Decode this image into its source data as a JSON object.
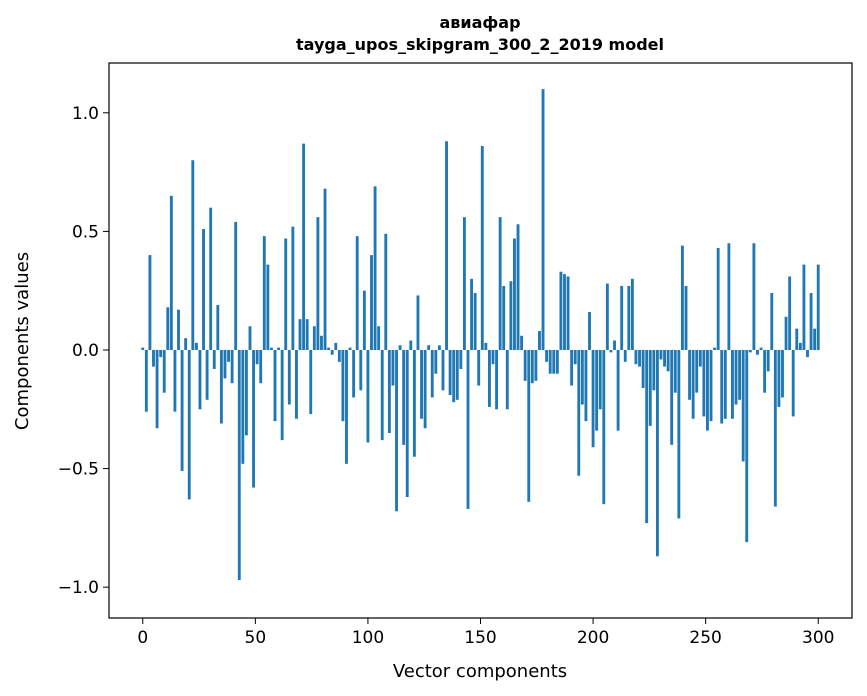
{
  "chart_data": {
    "type": "bar",
    "title_line1": "авиафар",
    "title_line2": "tayga_upos_skipgram_300_2_2019 model",
    "xlabel": "Vector components",
    "ylabel": "Components values",
    "xlim": [
      -15,
      315
    ],
    "ylim": [
      -1.13,
      1.21
    ],
    "x_ticks": [
      {
        "value": 0,
        "label": "0"
      },
      {
        "value": 50,
        "label": "50"
      },
      {
        "value": 100,
        "label": "100"
      },
      {
        "value": 150,
        "label": "150"
      },
      {
        "value": 200,
        "label": "200"
      },
      {
        "value": 250,
        "label": "250"
      },
      {
        "value": 300,
        "label": "300"
      }
    ],
    "y_ticks": [
      {
        "value": 1.0,
        "label": "1.0"
      },
      {
        "value": 0.5,
        "label": "0.5"
      },
      {
        "value": 0.0,
        "label": "0.0"
      },
      {
        "value": -0.5,
        "label": "−0.5"
      },
      {
        "value": -1.0,
        "label": "−1.0"
      }
    ],
    "bar_color": "#1f77b4",
    "grid": false,
    "values": [
      0.01,
      -0.26,
      0.4,
      -0.07,
      -0.33,
      -0.03,
      -0.18,
      0.18,
      0.65,
      -0.26,
      0.17,
      -0.51,
      0.05,
      -0.63,
      0.8,
      0.03,
      -0.25,
      0.51,
      -0.21,
      0.6,
      -0.08,
      0.19,
      -0.31,
      -0.12,
      -0.05,
      -0.14,
      0.54,
      -0.97,
      -0.48,
      -0.36,
      0.1,
      -0.58,
      -0.06,
      -0.14,
      0.48,
      0.36,
      0.01,
      -0.3,
      0.01,
      -0.38,
      0.47,
      -0.23,
      0.52,
      -0.29,
      0.13,
      0.87,
      0.13,
      -0.27,
      0.1,
      0.56,
      0.06,
      0.68,
      0.01,
      -0.02,
      0.03,
      -0.05,
      -0.3,
      -0.48,
      0.01,
      -0.2,
      0.48,
      -0.17,
      0.25,
      -0.39,
      0.4,
      0.69,
      0.1,
      -0.38,
      0.49,
      -0.35,
      -0.15,
      -0.68,
      0.02,
      -0.4,
      -0.62,
      0.04,
      -0.45,
      0.23,
      -0.29,
      -0.33,
      0.02,
      -0.2,
      -0.1,
      0.02,
      -0.17,
      0.88,
      -0.19,
      -0.22,
      -0.21,
      -0.08,
      0.56,
      -0.67,
      0.3,
      0.24,
      -0.15,
      0.86,
      0.03,
      -0.24,
      -0.06,
      -0.25,
      0.56,
      0.27,
      -0.25,
      0.29,
      0.47,
      0.53,
      0.06,
      -0.13,
      -0.64,
      -0.14,
      -0.13,
      0.08,
      1.1,
      -0.05,
      -0.1,
      -0.1,
      -0.1,
      0.33,
      0.32,
      0.31,
      -0.15,
      -0.06,
      -0.53,
      -0.23,
      -0.3,
      0.16,
      -0.41,
      -0.34,
      -0.25,
      -0.65,
      0.28,
      -0.01,
      0.04,
      -0.34,
      0.27,
      -0.05,
      0.27,
      0.3,
      -0.06,
      -0.07,
      -0.16,
      -0.73,
      -0.32,
      -0.17,
      -0.87,
      -0.04,
      -0.07,
      -0.09,
      -0.4,
      -0.18,
      -0.71,
      0.44,
      0.27,
      -0.21,
      -0.29,
      -0.18,
      -0.07,
      -0.28,
      -0.34,
      -0.3,
      0.01,
      0.43,
      -0.31,
      -0.29,
      0.45,
      -0.29,
      -0.23,
      -0.21,
      -0.47,
      -0.81,
      -0.01,
      0.45,
      -0.02,
      0.01,
      -0.18,
      -0.09,
      0.24,
      -0.66,
      -0.24,
      -0.2,
      0.14,
      0.31,
      -0.28,
      0.09,
      0.03,
      0.36,
      -0.03,
      0.24,
      0.09,
      0.36
    ]
  }
}
